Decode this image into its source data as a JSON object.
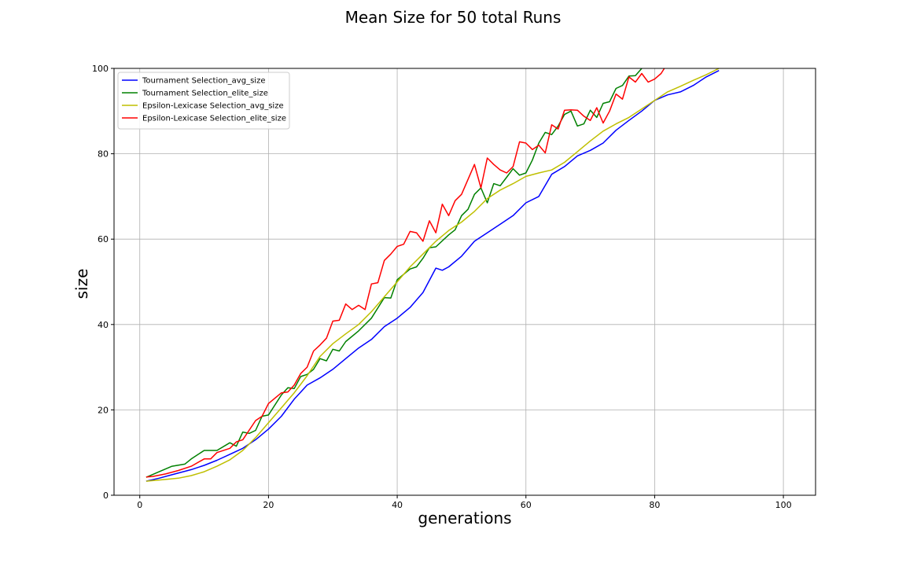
{
  "chart_data": {
    "type": "line",
    "title": "Mean Size for 50 total Runs",
    "xlabel": "generations",
    "ylabel": "size",
    "xlim": [
      -4,
      105
    ],
    "ylim": [
      0,
      100
    ],
    "xticks": [
      0,
      20,
      40,
      60,
      80,
      100
    ],
    "yticks": [
      0,
      20,
      40,
      60,
      80,
      100
    ],
    "grid": true,
    "legend_position": "top-left",
    "series": [
      {
        "name": "Tournament Selection_avg_size",
        "color": "#0000ff",
        "points": [
          [
            1,
            3.3
          ],
          [
            3,
            4.0
          ],
          [
            5,
            4.8
          ],
          [
            8,
            6.0
          ],
          [
            10,
            7.0
          ],
          [
            12,
            8.2
          ],
          [
            14,
            9.6
          ],
          [
            16,
            11.0
          ],
          [
            18,
            13.0
          ],
          [
            20,
            15.5
          ],
          [
            22,
            18.5
          ],
          [
            24,
            22.5
          ],
          [
            26,
            25.8
          ],
          [
            28,
            27.5
          ],
          [
            30,
            29.5
          ],
          [
            32,
            32.0
          ],
          [
            34,
            34.5
          ],
          [
            36,
            36.5
          ],
          [
            38,
            39.5
          ],
          [
            40,
            41.5
          ],
          [
            42,
            44.0
          ],
          [
            44,
            47.5
          ],
          [
            46,
            53.2
          ],
          [
            47,
            52.7
          ],
          [
            48,
            53.5
          ],
          [
            50,
            56.0
          ],
          [
            52,
            59.5
          ],
          [
            54,
            61.5
          ],
          [
            56,
            63.5
          ],
          [
            58,
            65.5
          ],
          [
            60,
            68.5
          ],
          [
            62,
            70.0
          ],
          [
            64,
            75.2
          ],
          [
            66,
            77.0
          ],
          [
            68,
            79.5
          ],
          [
            70,
            80.8
          ],
          [
            72,
            82.5
          ],
          [
            74,
            85.5
          ],
          [
            76,
            87.8
          ],
          [
            78,
            90.0
          ],
          [
            80,
            92.5
          ],
          [
            82,
            93.8
          ],
          [
            84,
            94.5
          ],
          [
            86,
            96.0
          ],
          [
            88,
            98.0
          ],
          [
            90,
            99.5
          ]
        ]
      },
      {
        "name": "Tournament Selection_elite_size",
        "color": "#008000",
        "points": [
          [
            1,
            4.2
          ],
          [
            3,
            5.5
          ],
          [
            5,
            6.8
          ],
          [
            7,
            7.3
          ],
          [
            8,
            8.5
          ],
          [
            10,
            10.5
          ],
          [
            12,
            10.5
          ],
          [
            14,
            12.3
          ],
          [
            15,
            11.5
          ],
          [
            16,
            14.8
          ],
          [
            17,
            14.5
          ],
          [
            18,
            15.2
          ],
          [
            19,
            18.5
          ],
          [
            20,
            18.8
          ],
          [
            22,
            23.5
          ],
          [
            23,
            25.2
          ],
          [
            24,
            25.0
          ],
          [
            25,
            27.8
          ],
          [
            26,
            28.3
          ],
          [
            27,
            29.5
          ],
          [
            28,
            32.0
          ],
          [
            29,
            31.5
          ],
          [
            30,
            34.2
          ],
          [
            31,
            33.8
          ],
          [
            32,
            36.0
          ],
          [
            34,
            38.5
          ],
          [
            36,
            41.5
          ],
          [
            38,
            46.3
          ],
          [
            39,
            46.2
          ],
          [
            40,
            50.5
          ],
          [
            42,
            53.0
          ],
          [
            43,
            53.5
          ],
          [
            44,
            55.5
          ],
          [
            45,
            58.0
          ],
          [
            46,
            58.2
          ],
          [
            48,
            61.0
          ],
          [
            49,
            62.2
          ],
          [
            50,
            65.5
          ],
          [
            51,
            67.0
          ],
          [
            52,
            70.5
          ],
          [
            53,
            72.0
          ],
          [
            54,
            68.5
          ],
          [
            55,
            73.0
          ],
          [
            56,
            72.5
          ],
          [
            57,
            74.5
          ],
          [
            58,
            76.5
          ],
          [
            59,
            75.0
          ],
          [
            60,
            75.5
          ],
          [
            61,
            78.5
          ],
          [
            62,
            82.5
          ],
          [
            63,
            85.0
          ],
          [
            64,
            84.5
          ],
          [
            65,
            86.5
          ],
          [
            66,
            89.2
          ],
          [
            67,
            90.0
          ],
          [
            68,
            86.5
          ],
          [
            69,
            87.0
          ],
          [
            70,
            90.2
          ],
          [
            71,
            88.5
          ],
          [
            72,
            91.8
          ],
          [
            73,
            92.2
          ],
          [
            74,
            95.3
          ],
          [
            75,
            96.0
          ],
          [
            76,
            98.2
          ],
          [
            77,
            98.3
          ],
          [
            78,
            100.0
          ]
        ]
      },
      {
        "name": "Epsilon-Lexicase Selection_avg_size",
        "color": "#bfbf00",
        "points": [
          [
            1,
            3.3
          ],
          [
            4,
            3.7
          ],
          [
            6,
            4.0
          ],
          [
            8,
            4.6
          ],
          [
            10,
            5.5
          ],
          [
            12,
            6.8
          ],
          [
            14,
            8.3
          ],
          [
            16,
            10.5
          ],
          [
            18,
            13.5
          ],
          [
            20,
            17.0
          ],
          [
            22,
            20.5
          ],
          [
            24,
            24.0
          ],
          [
            26,
            28.0
          ],
          [
            28,
            32.5
          ],
          [
            30,
            35.5
          ],
          [
            32,
            37.8
          ],
          [
            34,
            40.0
          ],
          [
            36,
            43.0
          ],
          [
            38,
            46.5
          ],
          [
            40,
            50.0
          ],
          [
            42,
            53.5
          ],
          [
            44,
            56.5
          ],
          [
            46,
            59.5
          ],
          [
            48,
            62.0
          ],
          [
            50,
            64.0
          ],
          [
            52,
            66.5
          ],
          [
            54,
            69.5
          ],
          [
            56,
            71.5
          ],
          [
            58,
            73.0
          ],
          [
            60,
            74.7
          ],
          [
            62,
            75.5
          ],
          [
            64,
            76.2
          ],
          [
            66,
            78.0
          ],
          [
            68,
            80.5
          ],
          [
            70,
            83.0
          ],
          [
            72,
            85.3
          ],
          [
            74,
            87.0
          ],
          [
            76,
            88.5
          ],
          [
            78,
            90.5
          ],
          [
            80,
            92.5
          ],
          [
            82,
            94.5
          ],
          [
            84,
            95.8
          ],
          [
            86,
            97.2
          ],
          [
            88,
            98.5
          ],
          [
            90,
            100.0
          ]
        ]
      },
      {
        "name": "Epsilon-Lexicase Selection_elite_size",
        "color": "#ff0000",
        "points": [
          [
            1,
            4.3
          ],
          [
            2,
            4.4
          ],
          [
            4,
            5.0
          ],
          [
            6,
            5.8
          ],
          [
            8,
            6.8
          ],
          [
            10,
            8.5
          ],
          [
            11,
            8.5
          ],
          [
            12,
            10.0
          ],
          [
            14,
            11.0
          ],
          [
            15,
            12.5
          ],
          [
            16,
            13.0
          ],
          [
            18,
            17.5
          ],
          [
            19,
            18.5
          ],
          [
            20,
            21.5
          ],
          [
            22,
            24.0
          ],
          [
            23,
            24.2
          ],
          [
            24,
            25.8
          ],
          [
            25,
            28.5
          ],
          [
            26,
            30.0
          ],
          [
            27,
            33.8
          ],
          [
            28,
            35.2
          ],
          [
            29,
            36.8
          ],
          [
            30,
            40.8
          ],
          [
            31,
            41.0
          ],
          [
            32,
            44.8
          ],
          [
            33,
            43.5
          ],
          [
            34,
            44.5
          ],
          [
            35,
            43.5
          ],
          [
            36,
            49.5
          ],
          [
            37,
            49.8
          ],
          [
            38,
            55.0
          ],
          [
            39,
            56.5
          ],
          [
            40,
            58.3
          ],
          [
            41,
            58.8
          ],
          [
            42,
            61.8
          ],
          [
            43,
            61.5
          ],
          [
            44,
            59.5
          ],
          [
            45,
            64.3
          ],
          [
            46,
            61.5
          ],
          [
            47,
            68.2
          ],
          [
            48,
            65.5
          ],
          [
            49,
            69.0
          ],
          [
            50,
            70.5
          ],
          [
            52,
            77.5
          ],
          [
            53,
            72.0
          ],
          [
            54,
            79.0
          ],
          [
            55,
            77.5
          ],
          [
            56,
            76.2
          ],
          [
            57,
            75.5
          ],
          [
            58,
            77.0
          ],
          [
            59,
            82.8
          ],
          [
            60,
            82.5
          ],
          [
            61,
            81.0
          ],
          [
            62,
            82.0
          ],
          [
            63,
            80.2
          ],
          [
            64,
            86.8
          ],
          [
            65,
            85.8
          ],
          [
            66,
            90.2
          ],
          [
            67,
            90.3
          ],
          [
            68,
            90.2
          ],
          [
            69,
            88.8
          ],
          [
            70,
            87.8
          ],
          [
            71,
            90.8
          ],
          [
            72,
            87.2
          ],
          [
            73,
            90.0
          ],
          [
            74,
            94.0
          ],
          [
            75,
            92.8
          ],
          [
            76,
            98.0
          ],
          [
            77,
            96.8
          ],
          [
            78,
            98.8
          ],
          [
            79,
            96.8
          ],
          [
            80,
            97.5
          ],
          [
            81,
            98.8
          ],
          [
            81.5,
            100.0
          ]
        ]
      }
    ]
  }
}
